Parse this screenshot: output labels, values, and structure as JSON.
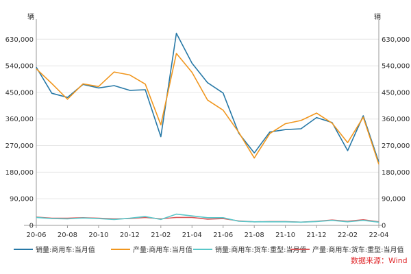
{
  "chart_data": {
    "type": "line",
    "y_unit_left": "辆",
    "y_unit_right": "辆",
    "ylim": [
      0,
      670000
    ],
    "yticks": [
      0,
      90000,
      180000,
      270000,
      360000,
      450000,
      540000,
      630000
    ],
    "ytick_labels": [
      "0",
      "90,000",
      "180,000",
      "270,000",
      "360,000",
      "450,000",
      "540,000",
      "630,000"
    ],
    "x": [
      "20-06",
      "20-07",
      "20-08",
      "20-09",
      "20-10",
      "20-11",
      "20-12",
      "21-01",
      "21-02",
      "21-03",
      "21-04",
      "21-05",
      "21-06",
      "21-07",
      "21-08",
      "21-09",
      "21-10",
      "21-11",
      "21-12",
      "22-01",
      "22-02",
      "22-03",
      "22-04"
    ],
    "xtick_labels": [
      "20-06",
      "20-08",
      "20-10",
      "20-12",
      "21-02",
      "21-04",
      "21-06",
      "21-08",
      "21-10",
      "21-12",
      "22-02",
      "22-04"
    ],
    "grid": "horizontal",
    "legend_position": "bottom",
    "series": [
      {
        "name": "销量:商用车:当月值",
        "color": "#2678a6",
        "values": [
          535000,
          447000,
          433000,
          477000,
          465000,
          473000,
          457000,
          459000,
          300000,
          650000,
          549000,
          483000,
          448000,
          312000,
          245000,
          316000,
          324000,
          327000,
          365000,
          348000,
          253000,
          371000,
          214000
        ]
      },
      {
        "name": "产量:商用车:当月值",
        "color": "#f0961e",
        "values": [
          530000,
          480000,
          427000,
          479000,
          470000,
          519000,
          509000,
          478000,
          340000,
          582000,
          518000,
          424000,
          390000,
          315000,
          228000,
          311000,
          344000,
          355000,
          380000,
          346000,
          280000,
          366000,
          207000
        ]
      },
      {
        "name": "销量:商用车:货车:重型:当月值",
        "color": "#59c7c9",
        "values": [
          27000,
          23000,
          22000,
          25000,
          23000,
          20000,
          24000,
          30000,
          20000,
          38000,
          32000,
          26000,
          26000,
          14000,
          12000,
          12000,
          12000,
          11000,
          13000,
          17000,
          12000,
          17000,
          11000
        ]
      },
      {
        "name": "产量:商用车:货车:重型:当月值",
        "color": "#d9585a",
        "values": [
          28000,
          24000,
          24000,
          26000,
          24000,
          22000,
          23000,
          27000,
          22000,
          27000,
          27000,
          21000,
          23000,
          15000,
          12000,
          13000,
          13000,
          11000,
          14000,
          18000,
          14000,
          19000,
          12000
        ]
      }
    ]
  },
  "source_label": "数据来源：Wind"
}
